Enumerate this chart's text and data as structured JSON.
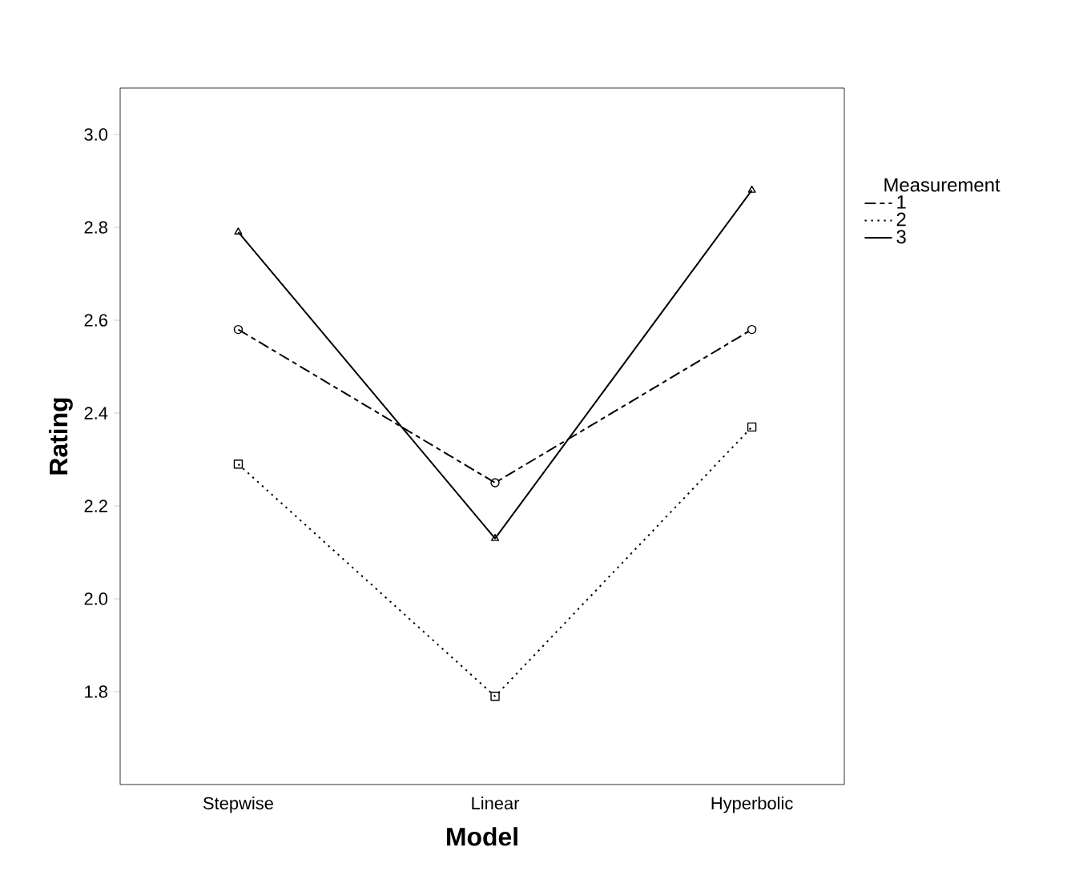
{
  "chart_data": {
    "type": "line",
    "xlabel": "Model",
    "ylabel": "Rating",
    "legend_title": "Measurement",
    "categories": [
      "Stepwise",
      "Linear",
      "Hyperbolic"
    ],
    "series": [
      {
        "name": "1",
        "color": "#000000",
        "values": [
          2.58,
          2.25,
          2.58
        ],
        "marker": "circle",
        "line_style": "dashed"
      },
      {
        "name": "2",
        "color": "#000000",
        "values": [
          2.29,
          1.79,
          2.37
        ],
        "marker": "square",
        "line_style": "dotted"
      },
      {
        "name": "3",
        "color": "#000000",
        "values": [
          2.79,
          2.13,
          2.88
        ],
        "marker": "triangle",
        "line_style": "solid"
      }
    ],
    "ylim": [
      1.6,
      3.1
    ],
    "yticks": [
      {
        "value": 1.8,
        "label": "1.8"
      },
      {
        "value": 2.0,
        "label": "2.0"
      },
      {
        "value": 2.2,
        "label": "2.2"
      },
      {
        "value": 2.4,
        "label": "2.4"
      },
      {
        "value": 2.6,
        "label": "2.6"
      },
      {
        "value": 2.8,
        "label": "2.8"
      },
      {
        "value": 3.0,
        "label": "3.0"
      }
    ],
    "grid": false,
    "legend": "right"
  }
}
